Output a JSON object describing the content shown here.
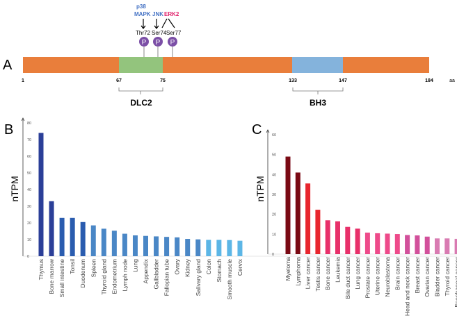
{
  "panel_a": {
    "label": "A",
    "kinases": {
      "p38_line1": "p38",
      "p38_line2": "MAPK",
      "jnk": "JNK",
      "erk2": "ERK2"
    },
    "sites": [
      "Thr72",
      "Ser74",
      "Ser77"
    ],
    "phospho_symbol": "P",
    "positions": [
      "1",
      "67",
      "75",
      "133",
      "147",
      "184"
    ],
    "unit": "aa",
    "domains": [
      {
        "name": "DLC2",
        "start": 67,
        "end": 75,
        "color": "#93c47d"
      },
      {
        "name": "BH3",
        "start": 133,
        "end": 147,
        "color": "#84b3dc"
      }
    ],
    "length": 184,
    "backbone_color": "#e97e3b",
    "colors": {
      "kinase_blue": "#4472c4",
      "kinase_pink": "#e0206a",
      "phospho": "#7b4fa6"
    }
  },
  "chart_data": [
    {
      "panel": "B",
      "type": "bar",
      "ylabel": "nTPM",
      "ylim": [
        0,
        80
      ],
      "yticks": [
        "0",
        "10",
        "20",
        "30",
        "40",
        "50",
        "60",
        "70",
        "80"
      ],
      "categories": [
        "Thymus",
        "Bone marrow",
        "Small intestine",
        "Tonsil",
        "Duodenum",
        "Spleen",
        "Thyroid gland",
        "Endometrium",
        "Lymph node",
        "Lung",
        "Appendix",
        "Gallbladder",
        "Fallopian tube",
        "Ovary",
        "Kidney",
        "Salivary gland",
        "Colon",
        "Stomach",
        "Smooth muscle",
        "Cervix"
      ],
      "values": [
        74,
        33,
        23,
        23,
        20.5,
        18.5,
        16.5,
        15.3,
        13.5,
        12.5,
        12.2,
        11.9,
        11.6,
        11.3,
        10.4,
        10.1,
        9.8,
        9.8,
        9.7,
        9.3
      ],
      "colors": [
        "#2b3f98",
        "#2b3f98",
        "#2a5caf",
        "#2a5caf",
        "#2a5caf",
        "#4a87c6",
        "#4a87c6",
        "#4a87c6",
        "#4a87c6",
        "#4a87c6",
        "#4a87c6",
        "#4a87c6",
        "#4a87c6",
        "#4a87c6",
        "#4a87c6",
        "#4a87c6",
        "#5cb6e6",
        "#5cb6e6",
        "#5cb6e6",
        "#5cb6e6"
      ]
    },
    {
      "panel": "C",
      "type": "bar",
      "ylabel": "nTPM",
      "ylim": [
        0,
        60
      ],
      "yticks": [
        "0",
        "10",
        "20",
        "30",
        "40",
        "50",
        "60"
      ],
      "categories": [
        "Myeloma",
        "Lymphoma",
        "Liver cancer",
        "Testis cancer",
        "Bone cancer",
        "Leukemia",
        "Bile duct cancer",
        "Lung cancer",
        "Prostate cancer",
        "Uterine cancer",
        "Neuroblastoma",
        "Brain cancer",
        "Head and neck cancer",
        "Breast cancer",
        "Ovarian cancer",
        "Bladder cancer",
        "Thyroid cancer",
        "Esophageal cancer"
      ],
      "values": [
        49,
        41,
        35.5,
        22.3,
        17,
        16.5,
        13.7,
        12.8,
        10.8,
        10.5,
        10.3,
        10.1,
        9.6,
        9.4,
        8.8,
        7.9,
        7.9,
        7.7
      ],
      "colors": [
        "#7a0a14",
        "#7a0a14",
        "#e8262e",
        "#e8262e",
        "#e8306a",
        "#e8306a",
        "#e8306a",
        "#e8306a",
        "#ee4a8a",
        "#ee4a8a",
        "#ee4a8a",
        "#ee4a8a",
        "#d2509b",
        "#d2509b",
        "#d2509b",
        "#d97bb2",
        "#d97bb2",
        "#d97bb2"
      ]
    }
  ]
}
